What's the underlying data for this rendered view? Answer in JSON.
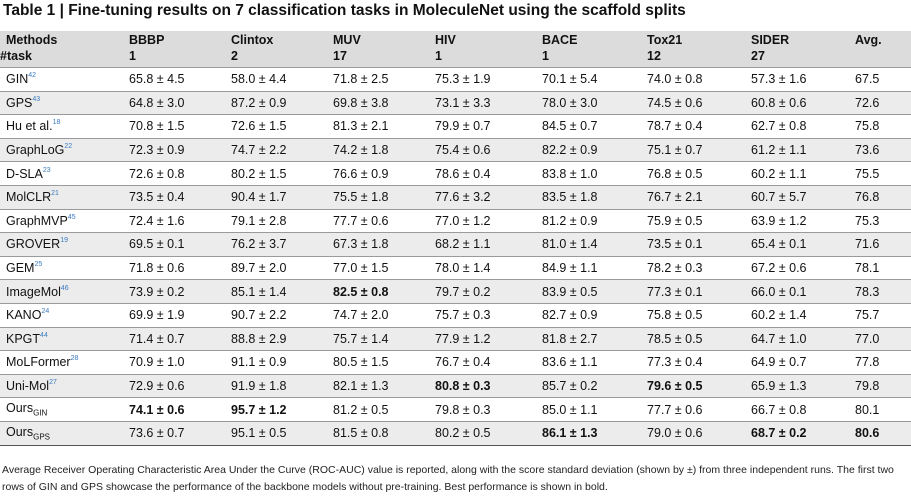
{
  "title": "Table 1 | Fine-tuning results on 7 classification tasks in MoleculeNet using the scaffold splits",
  "header": {
    "methods": "Methods",
    "task_label": "#task",
    "columns": [
      {
        "name": "BBBP",
        "task": "1"
      },
      {
        "name": "Clintox",
        "task": "2"
      },
      {
        "name": "MUV",
        "task": "17"
      },
      {
        "name": "HIV",
        "task": "1"
      },
      {
        "name": "BACE",
        "task": "1"
      },
      {
        "name": "Tox21",
        "task": "12"
      },
      {
        "name": "SIDER",
        "task": "27"
      }
    ],
    "avg": "Avg."
  },
  "rows": [
    {
      "method": "GIN",
      "ref": "42",
      "values": [
        "65.8 ± 4.5",
        "58.0 ± 4.4",
        "71.8 ± 2.5",
        "75.3 ± 1.9",
        "70.1 ± 5.4",
        "74.0 ± 0.8",
        "57.3 ± 1.6"
      ],
      "avg": "67.5",
      "bold": []
    },
    {
      "method": "GPS",
      "ref": "43",
      "values": [
        "64.8 ± 3.0",
        "87.2 ± 0.9",
        "69.8 ± 3.8",
        "73.1 ± 3.3",
        "78.0 ± 3.0",
        "74.5 ± 0.6",
        "60.8 ± 0.6"
      ],
      "avg": "72.6",
      "bold": []
    },
    {
      "method": "Hu et al.",
      "ref": "18",
      "values": [
        "70.8 ± 1.5",
        "72.6 ± 1.5",
        "81.3 ± 2.1",
        "79.9 ± 0.7",
        "84.5 ± 0.7",
        "78.7 ± 0.4",
        "62.7 ± 0.8"
      ],
      "avg": "75.8",
      "bold": []
    },
    {
      "method": "GraphLoG",
      "ref": "22",
      "values": [
        "72.3 ± 0.9",
        "74.7 ± 2.2",
        "74.2 ± 1.8",
        "75.4 ± 0.6",
        "82.2 ± 0.9",
        "75.1 ± 0.7",
        "61.2 ± 1.1"
      ],
      "avg": "73.6",
      "bold": []
    },
    {
      "method": "D-SLA",
      "ref": "23",
      "values": [
        "72.6 ± 0.8",
        "80.2 ± 1.5",
        "76.6 ± 0.9",
        "78.6 ± 0.4",
        "83.8 ± 1.0",
        "76.8 ± 0.5",
        "60.2 ± 1.1"
      ],
      "avg": "75.5",
      "bold": []
    },
    {
      "method": "MolCLR",
      "ref": "21",
      "values": [
        "73.5 ± 0.4",
        "90.4 ± 1.7",
        "75.5 ± 1.8",
        "77.6 ± 3.2",
        "83.5 ± 1.8",
        "76.7 ± 2.1",
        "60.7 ± 5.7"
      ],
      "avg": "76.8",
      "bold": []
    },
    {
      "method": "GraphMVP",
      "ref": "45",
      "values": [
        "72.4 ± 1.6",
        "79.1 ± 2.8",
        "77.7 ± 0.6",
        "77.0 ± 1.2",
        "81.2 ± 0.9",
        "75.9 ± 0.5",
        "63.9 ± 1.2"
      ],
      "avg": "75.3",
      "bold": []
    },
    {
      "method": "GROVER",
      "ref": "19",
      "values": [
        "69.5 ± 0.1",
        "76.2 ± 3.7",
        "67.3 ± 1.8",
        "68.2 ± 1.1",
        "81.0 ± 1.4",
        "73.5 ± 0.1",
        "65.4 ± 0.1"
      ],
      "avg": "71.6",
      "bold": []
    },
    {
      "method": "GEM",
      "ref": "25",
      "values": [
        "71.8 ± 0.6",
        "89.7 ± 2.0",
        "77.0 ± 1.5",
        "78.0 ± 1.4",
        "84.9 ± 1.1",
        "78.2 ± 0.3",
        "67.2 ± 0.6"
      ],
      "avg": "78.1",
      "bold": []
    },
    {
      "method": "ImageMol",
      "ref": "46",
      "values": [
        "73.9 ± 0.2",
        "85.1 ± 1.4",
        "82.5 ± 0.8",
        "79.7 ± 0.2",
        "83.9 ± 0.5",
        "77.3 ± 0.1",
        "66.0 ± 0.1"
      ],
      "avg": "78.3",
      "bold": [
        2
      ]
    },
    {
      "method": "KANO",
      "ref": "24",
      "values": [
        "69.9 ± 1.9",
        "90.7 ± 2.2",
        "74.7 ± 2.0",
        "75.7 ± 0.3",
        "82.7 ± 0.9",
        "75.8 ± 0.5",
        "60.2 ± 1.4"
      ],
      "avg": "75.7",
      "bold": []
    },
    {
      "method": "KPGT",
      "ref": "44",
      "values": [
        "71.4 ± 0.7",
        "88.8 ± 2.9",
        "75.7 ± 1.4",
        "77.9 ± 1.2",
        "81.8 ± 2.7",
        "78.5 ± 0.5",
        "64.7 ± 1.0"
      ],
      "avg": "77.0",
      "bold": []
    },
    {
      "method": "MoLFormer",
      "ref": "28",
      "values": [
        "70.9 ± 1.0",
        "91.1 ± 0.9",
        "80.5 ± 1.5",
        "76.7 ± 0.4",
        "83.6 ± 1.1",
        "77.3 ± 0.4",
        "64.9 ± 0.7"
      ],
      "avg": "77.8",
      "bold": []
    },
    {
      "method": "Uni-Mol",
      "ref": "27",
      "values": [
        "72.9 ± 0.6",
        "91.9 ± 1.8",
        "82.1 ± 1.3",
        "80.8 ± 0.3",
        "85.7 ± 0.2",
        "79.6 ± 0.5",
        "65.9 ± 1.3"
      ],
      "avg": "79.8",
      "bold": [
        3,
        5
      ]
    },
    {
      "method": "Ours",
      "sub": "GIN",
      "values": [
        "74.1 ± 0.6",
        "95.7 ± 1.2",
        "81.2 ± 0.5",
        "79.8 ± 0.3",
        "85.0 ± 1.1",
        "77.7 ± 0.6",
        "66.7 ± 0.8"
      ],
      "avg": "80.1",
      "bold": [
        0,
        1
      ]
    },
    {
      "method": "Ours",
      "sub": "GPS",
      "values": [
        "73.6 ± 0.7",
        "95.1 ± 0.5",
        "81.5 ± 0.8",
        "80.2 ± 0.5",
        "86.1 ± 1.3",
        "79.0 ± 0.6",
        "68.7 ± 0.2"
      ],
      "avg": "80.6",
      "bold": [
        4,
        6,
        7
      ]
    }
  ],
  "caption": "Average Receiver Operating Characteristic Area Under the Curve (ROC-AUC) value is reported, along with the score standard deviation (shown by ±) from three independent runs. The first two rows of GIN and GPS showcase the performance of the backbone models without pre-training. Best performance is shown in bold."
}
